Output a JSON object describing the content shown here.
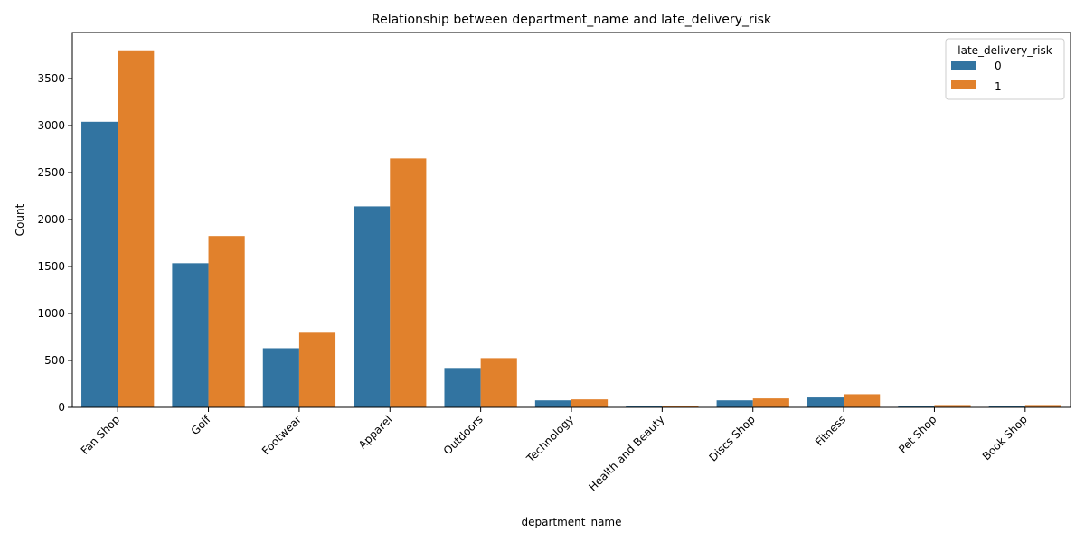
{
  "chart_data": {
    "type": "bar",
    "title": "Relationship between department_name and late_delivery_risk",
    "xlabel": "department_name",
    "ylabel": "Count",
    "ylim": [
      0,
      3990
    ],
    "yticks": [
      0,
      500,
      1000,
      1500,
      2000,
      2500,
      3000,
      3500
    ],
    "categories": [
      "Fan Shop",
      "Golf",
      "Footwear",
      "Apparel",
      "Outdoors",
      "Technology",
      "Health and Beauty",
      "Discs Shop",
      "Fitness",
      "Pet Shop",
      "Book Shop"
    ],
    "legend": {
      "title": "late_delivery_risk",
      "placement": "top-right"
    },
    "series": [
      {
        "name": "0",
        "color": "#3274a1",
        "values": [
          3040,
          1535,
          630,
          2140,
          420,
          75,
          15,
          75,
          105,
          15,
          15
        ]
      },
      {
        "name": "1",
        "color": "#e1812c",
        "values": [
          3800,
          1825,
          795,
          2650,
          525,
          85,
          15,
          95,
          140,
          25,
          25
        ]
      }
    ],
    "grid": false
  }
}
